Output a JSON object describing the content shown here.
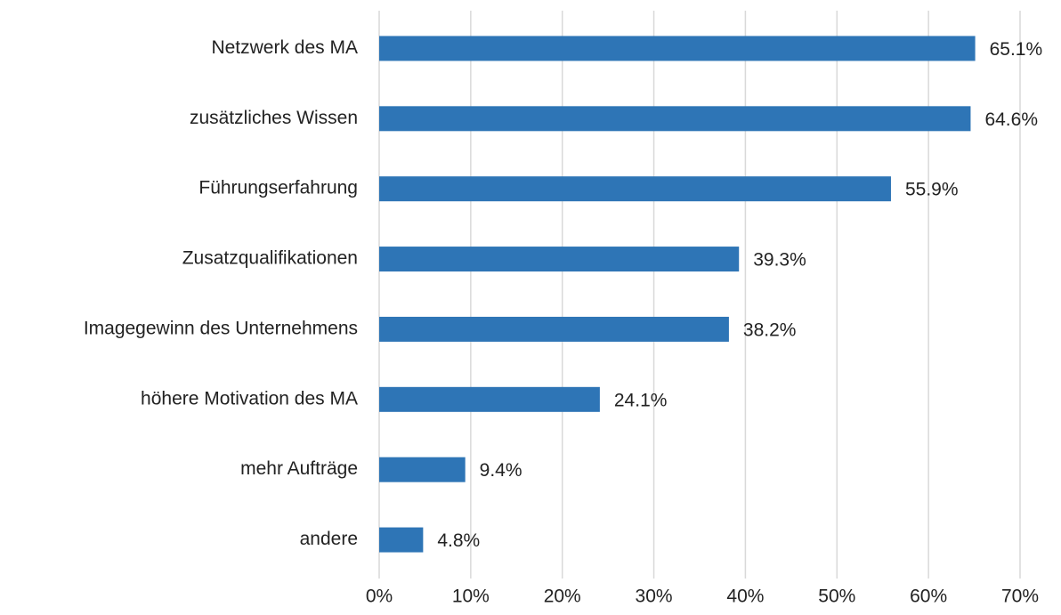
{
  "chart_data": {
    "type": "bar",
    "orientation": "horizontal",
    "categories": [
      "Netzwerk des MA",
      "zusätzliches Wissen",
      "Führungserfahrung",
      "Zusatzqualifikationen",
      "Imagegewinn des Unternehmens",
      "höhere Motivation des MA",
      "mehr Aufträge",
      "andere"
    ],
    "values": [
      65.1,
      64.6,
      55.9,
      39.3,
      38.2,
      24.1,
      9.4,
      4.8
    ],
    "value_labels": [
      "65.1%",
      "64.6%",
      "55.9%",
      "39.3%",
      "38.2%",
      "24.1%",
      "9.4%",
      "4.8%"
    ],
    "color": "#2e75b6",
    "xlim": [
      0,
      70
    ],
    "xticks": [
      {
        "value": 0,
        "label": "0%"
      },
      {
        "value": 10,
        "label": "10%"
      },
      {
        "value": 20,
        "label": "20%"
      },
      {
        "value": 30,
        "label": "30%"
      },
      {
        "value": 40,
        "label": "40%"
      },
      {
        "value": 50,
        "label": "50%"
      },
      {
        "value": 60,
        "label": "60%"
      },
      {
        "value": 70,
        "label": "70%"
      }
    ],
    "grid": true
  }
}
